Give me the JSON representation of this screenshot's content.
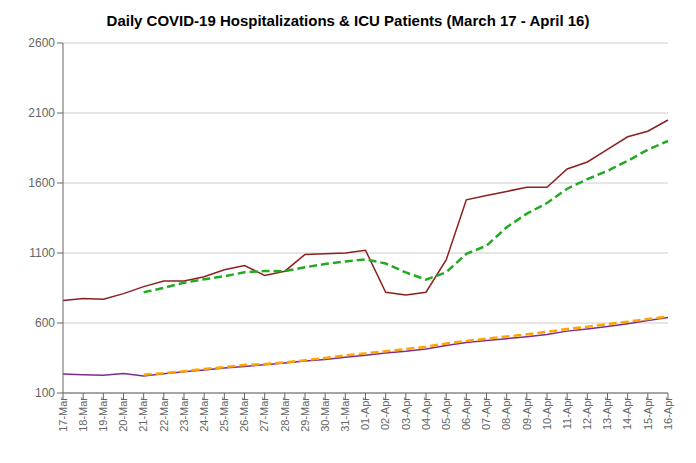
{
  "chart_data": {
    "type": "line",
    "title": "Daily COVID-19 Hospitalizations & ICU Patients (March 17 - April 16)",
    "categories": [
      "17-Mar",
      "18-Mar",
      "19-Mar",
      "20-Mar",
      "21-Mar",
      "22-Mar",
      "23-Mar",
      "24-Mar",
      "25-Mar",
      "26-Mar",
      "27-Mar",
      "28-Mar",
      "29-Mar",
      "30-Mar",
      "31-Mar",
      "01-Apr",
      "02-Apr",
      "03-Apr",
      "04-Apr",
      "05-Apr",
      "06-Apr",
      "07-Apr",
      "08-Apr",
      "09-Apr",
      "10-Apr",
      "11-Apr",
      "12-Apr",
      "13-Apr",
      "14-Apr",
      "15-Apr",
      "16-Apr"
    ],
    "series": [
      {
        "color": "#8B2020",
        "line_style": "solid",
        "values": [
          760,
          775,
          770,
          810,
          860,
          900,
          900,
          930,
          980,
          1010,
          940,
          970,
          1090,
          1095,
          1100,
          1120,
          820,
          800,
          820,
          1050,
          1480,
          1510,
          1540,
          1570,
          1570,
          1700,
          1750,
          1840,
          1930,
          1970,
          2050
        ]
      },
      {
        "color": "#22AA22",
        "line_style": "dashed",
        "values": [
          null,
          null,
          null,
          null,
          819,
          851,
          888,
          912,
          934,
          962,
          972,
          970,
          998,
          1021,
          1039,
          1055,
          1025,
          961,
          910,
          962,
          1094,
          1152,
          1284,
          1381,
          1457,
          1559,
          1627,
          1687,
          1758,
          1838,
          1900
        ]
      },
      {
        "color": "#7B2D8B",
        "line_style": "solid",
        "values": [
          235,
          230,
          227,
          240,
          222,
          238,
          252,
          265,
          278,
          290,
          302,
          315,
          328,
          340,
          355,
          370,
          385,
          398,
          415,
          440,
          460,
          475,
          488,
          502,
          518,
          542,
          558,
          575,
          595,
          618,
          640
        ]
      },
      {
        "color": "#FFA500",
        "line_style": "dashed",
        "values": [
          null,
          null,
          null,
          null,
          231,
          241,
          256,
          272,
          285,
          300,
          307,
          318,
          334,
          350,
          368,
          383,
          398,
          414,
          430,
          454,
          472,
          488,
          503,
          519,
          537,
          557,
          574,
          591,
          609,
          628,
          646
        ]
      }
    ],
    "ylim": [
      100,
      2600
    ],
    "yticks": [
      100,
      600,
      1100,
      1600,
      2100,
      2600
    ],
    "grid": "y"
  }
}
